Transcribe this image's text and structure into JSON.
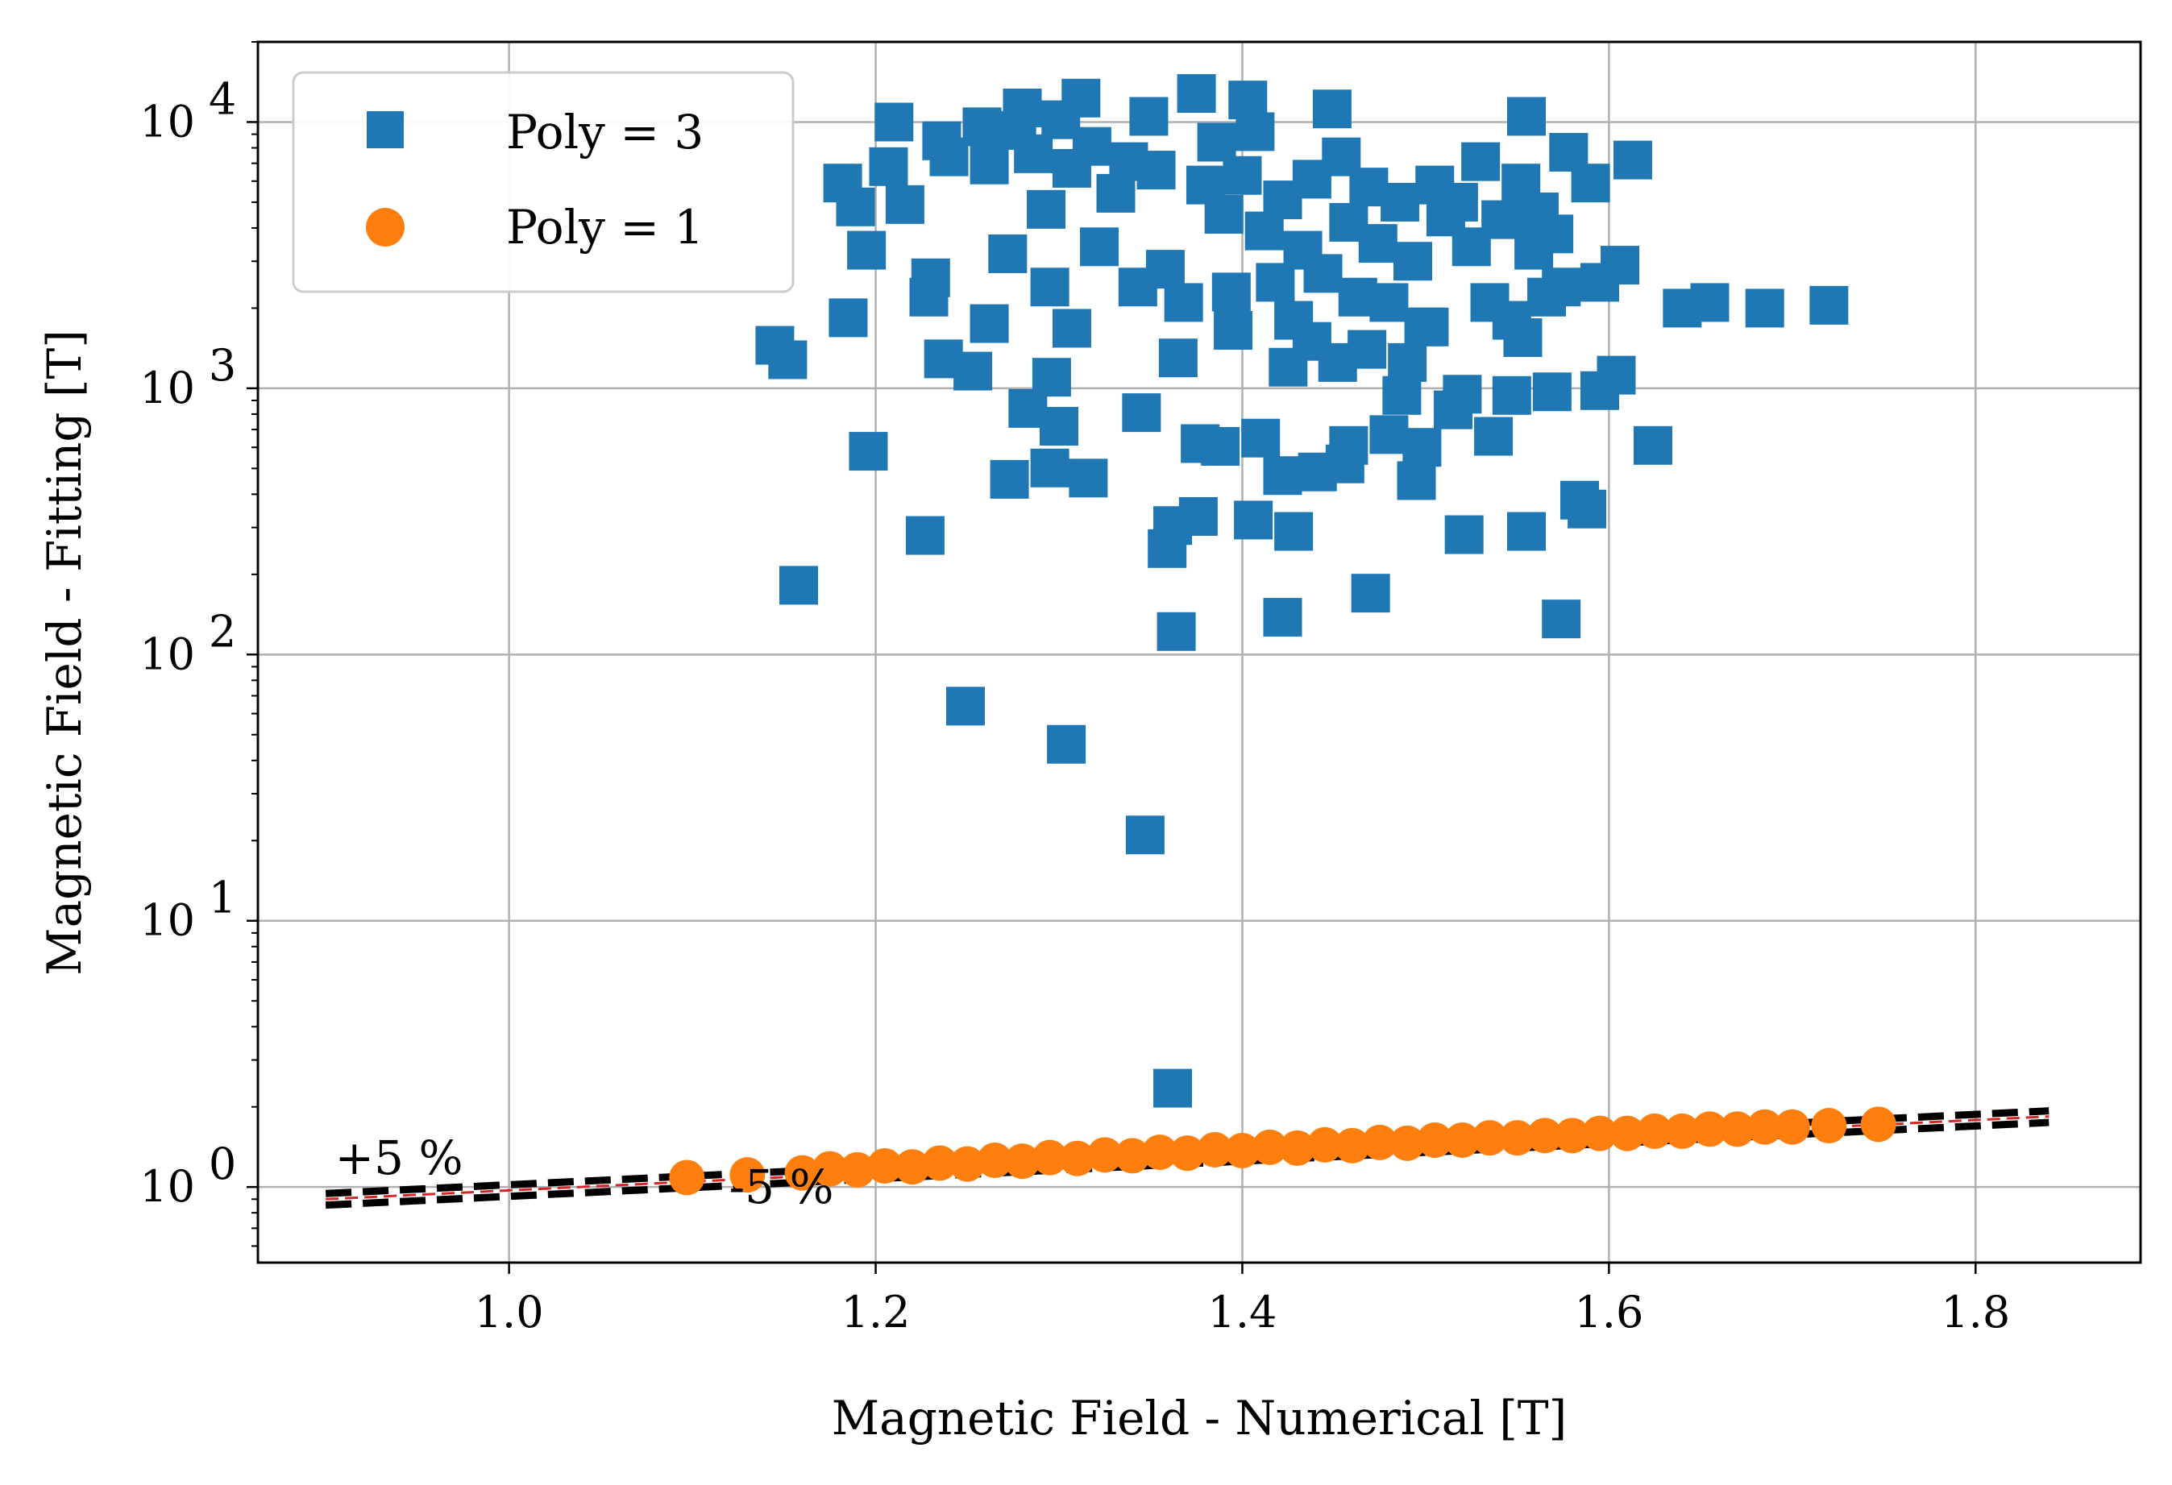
{
  "chart_data": {
    "type": "scatter",
    "title": "",
    "xlabel": "Magnetic Field - Numerical [T]",
    "ylabel": "Magnetic Field - Fitting [T]",
    "xlim": [
      0.863,
      1.89
    ],
    "ylim": [
      0.52,
      20000
    ],
    "yscale": "log",
    "grid": true,
    "legend_position": "top-left",
    "xticks": [
      1.0,
      1.2,
      1.4,
      1.6,
      1.8
    ],
    "xtick_labels": [
      "1.0",
      "1.2",
      "1.4",
      "1.6",
      "1.8"
    ],
    "yticks": [
      1,
      10,
      100,
      1000,
      10000
    ],
    "ytick_base": "10",
    "ytick_exponents": [
      "0",
      "1",
      "2",
      "3",
      "4"
    ],
    "colors": {
      "poly3": "#1f77b4",
      "poly1": "#ff7f0e",
      "bounds": "#000000",
      "center": "#d62728"
    },
    "series": [
      {
        "name": "Poly = 3",
        "marker": "square",
        "points": [
          [
            1.362,
            2.35
          ],
          [
            1.347,
            21
          ],
          [
            1.304,
            46
          ],
          [
            1.249,
            64
          ],
          [
            1.364,
            122
          ],
          [
            1.422,
            138
          ],
          [
            1.574,
            136
          ],
          [
            1.47,
            170
          ],
          [
            1.158,
            182
          ],
          [
            1.359,
            250
          ],
          [
            1.362,
            305
          ],
          [
            1.376,
            330
          ],
          [
            1.406,
            320
          ],
          [
            1.428,
            290
          ],
          [
            1.227,
            280
          ],
          [
            1.521,
            282
          ],
          [
            1.555,
            290
          ],
          [
            1.584,
            380
          ],
          [
            1.588,
            352
          ],
          [
            1.273,
            455
          ],
          [
            1.295,
            502
          ],
          [
            1.316,
            460
          ],
          [
            1.422,
            470
          ],
          [
            1.441,
            485
          ],
          [
            1.495,
            450
          ],
          [
            1.456,
            520
          ],
          [
            1.196,
            580
          ],
          [
            1.377,
            620
          ],
          [
            1.41,
            650
          ],
          [
            1.458,
            610
          ],
          [
            1.48,
            670
          ],
          [
            1.537,
            660
          ],
          [
            1.498,
            600
          ],
          [
            1.624,
            610
          ],
          [
            1.283,
            840
          ],
          [
            1.3,
            720
          ],
          [
            1.345,
            810
          ],
          [
            1.388,
            605
          ],
          [
            1.487,
            940
          ],
          [
            1.515,
            830
          ],
          [
            1.52,
            950
          ],
          [
            1.547,
            940
          ],
          [
            1.569,
            970
          ],
          [
            1.595,
            980
          ],
          [
            1.604,
            1120
          ],
          [
            1.145,
            1450
          ],
          [
            1.152,
            1280
          ],
          [
            1.185,
            1840
          ],
          [
            1.237,
            1290
          ],
          [
            1.253,
            1160
          ],
          [
            1.262,
            1750
          ],
          [
            1.296,
            1100
          ],
          [
            1.307,
            1680
          ],
          [
            1.365,
            1300
          ],
          [
            1.395,
            1650
          ],
          [
            1.425,
            1200
          ],
          [
            1.438,
            1500
          ],
          [
            1.452,
            1250
          ],
          [
            1.468,
            1400
          ],
          [
            1.49,
            1250
          ],
          [
            1.502,
            1700
          ],
          [
            1.553,
            1550
          ],
          [
            1.189,
            4800
          ],
          [
            1.182,
            5900
          ],
          [
            1.195,
            3300
          ],
          [
            1.207,
            6800
          ],
          [
            1.21,
            10000
          ],
          [
            1.216,
            4900
          ],
          [
            1.229,
            2200
          ],
          [
            1.23,
            2600
          ],
          [
            1.236,
            8500
          ],
          [
            1.24,
            7400
          ],
          [
            1.258,
            9600
          ],
          [
            1.262,
            6900
          ],
          [
            1.272,
            3200
          ],
          [
            1.277,
            9300
          ],
          [
            1.28,
            11300
          ],
          [
            1.286,
            7600
          ],
          [
            1.293,
            4700
          ],
          [
            1.295,
            2400
          ],
          [
            1.301,
            10200
          ],
          [
            1.307,
            6700
          ],
          [
            1.312,
            12300
          ],
          [
            1.318,
            8100
          ],
          [
            1.322,
            3400
          ],
          [
            1.331,
            5400
          ],
          [
            1.338,
            7100
          ],
          [
            1.343,
            2400
          ],
          [
            1.349,
            10500
          ],
          [
            1.353,
            6600
          ],
          [
            1.358,
            2800
          ],
          [
            1.368,
            2100
          ],
          [
            1.375,
            12800
          ],
          [
            1.38,
            5800
          ],
          [
            1.386,
            8400
          ],
          [
            1.39,
            4500
          ],
          [
            1.394,
            2300
          ],
          [
            1.4,
            6300
          ],
          [
            1.403,
            12100
          ],
          [
            1.407,
            9200
          ],
          [
            1.412,
            3900
          ],
          [
            1.418,
            2500
          ],
          [
            1.422,
            5100
          ],
          [
            1.428,
            1800
          ],
          [
            1.433,
            3300
          ],
          [
            1.438,
            6100
          ],
          [
            1.444,
            2700
          ],
          [
            1.449,
            11200
          ],
          [
            1.454,
            7400
          ],
          [
            1.458,
            4200
          ],
          [
            1.463,
            2200
          ],
          [
            1.469,
            5700
          ],
          [
            1.474,
            3500
          ],
          [
            1.48,
            2100
          ],
          [
            1.486,
            5000
          ],
          [
            1.493,
            3000
          ],
          [
            1.499,
            1700
          ],
          [
            1.505,
            5800
          ],
          [
            1.511,
            4400
          ],
          [
            1.518,
            5000
          ],
          [
            1.525,
            3400
          ],
          [
            1.53,
            7100
          ],
          [
            1.535,
            2100
          ],
          [
            1.541,
            4300
          ],
          [
            1.547,
            1800
          ],
          [
            1.552,
            5900
          ],
          [
            1.555,
            10500
          ],
          [
            1.559,
            3300
          ],
          [
            1.562,
            4600
          ],
          [
            1.566,
            2200
          ],
          [
            1.57,
            3800
          ],
          [
            1.574,
            2400
          ],
          [
            1.578,
            7700
          ],
          [
            1.59,
            5900
          ],
          [
            1.595,
            2500
          ],
          [
            1.606,
            2900
          ],
          [
            1.613,
            7200
          ],
          [
            1.64,
            2000
          ],
          [
            1.655,
            2100
          ],
          [
            1.685,
            2000
          ],
          [
            1.72,
            2050
          ]
        ]
      },
      {
        "name": "Poly = 1",
        "marker": "circle",
        "points": [
          [
            1.097,
            1.085
          ],
          [
            1.13,
            1.11
          ],
          [
            1.16,
            1.13
          ],
          [
            1.19,
            1.16
          ],
          [
            1.22,
            1.19
          ],
          [
            1.25,
            1.22
          ],
          [
            1.28,
            1.25
          ],
          [
            1.31,
            1.28
          ],
          [
            1.34,
            1.31
          ],
          [
            1.37,
            1.34
          ],
          [
            1.4,
            1.37
          ],
          [
            1.43,
            1.4
          ],
          [
            1.46,
            1.43
          ],
          [
            1.49,
            1.46
          ],
          [
            1.52,
            1.5
          ],
          [
            1.55,
            1.53
          ],
          [
            1.58,
            1.56
          ],
          [
            1.61,
            1.59
          ],
          [
            1.64,
            1.62
          ],
          [
            1.67,
            1.65
          ],
          [
            1.7,
            1.68
          ],
          [
            1.72,
            1.7
          ],
          [
            1.747,
            1.72
          ],
          [
            1.175,
            1.17
          ],
          [
            1.205,
            1.2
          ],
          [
            1.235,
            1.23
          ],
          [
            1.265,
            1.26
          ],
          [
            1.295,
            1.29
          ],
          [
            1.325,
            1.32
          ],
          [
            1.355,
            1.35
          ],
          [
            1.385,
            1.38
          ],
          [
            1.415,
            1.41
          ],
          [
            1.445,
            1.44
          ],
          [
            1.475,
            1.47
          ],
          [
            1.505,
            1.5
          ],
          [
            1.535,
            1.53
          ],
          [
            1.565,
            1.56
          ],
          [
            1.595,
            1.59
          ],
          [
            1.625,
            1.62
          ],
          [
            1.655,
            1.65
          ],
          [
            1.685,
            1.68
          ]
        ]
      }
    ],
    "reference_lines": {
      "x_range": [
        0.9,
        1.84
      ],
      "center_color": "#d62728",
      "upper_factor": 1.05,
      "lower_factor": 0.95
    },
    "annotations": [
      {
        "text": "+5 %",
        "x": 0.905,
        "y": 1.12
      },
      {
        "text": "-5 %",
        "x": 1.12,
        "y": 0.87
      }
    ]
  }
}
